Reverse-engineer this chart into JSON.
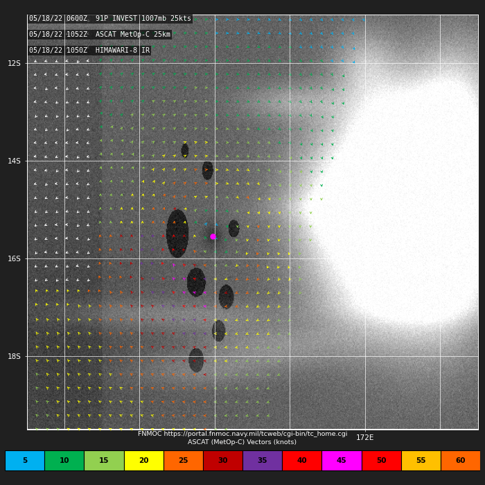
{
  "title_lines": [
    "05/18/22 0600Z  91P INVEST 1007mb 25kts",
    "05/18/22 1052Z  ASCAT MetOp-C 25km",
    "05/18/22 1050Z  HIMAWARI-8 IR"
  ],
  "footer_line1": "FNMOC https://portal.fnmoc.navy.mil/tcweb/cgi-bin/tc_home.cgi",
  "footer_line2": "ASCAT (MetOp-C) Vectors (knots)",
  "colorbar_values": [
    5,
    10,
    15,
    20,
    25,
    30,
    35,
    40,
    45,
    50,
    55,
    60
  ],
  "colorbar_colors": [
    "#00b0f0",
    "#00b050",
    "#92d050",
    "#ffff00",
    "#ff6600",
    "#c00000",
    "#7030a0",
    "#ff0000",
    "#ff00ff",
    "#ff0000",
    "#ffc000",
    "#ff6600"
  ],
  "lat_labels": [
    "12S",
    "14S",
    "16S",
    "18S"
  ],
  "lat_ticks": [
    -12,
    -14,
    -16,
    -18
  ],
  "lon_label": "172E",
  "lon_tick": 172,
  "map_xlim": [
    163.0,
    175.0
  ],
  "map_ylim": [
    -19.5,
    -11.0
  ],
  "eye_lat": -15.55,
  "eye_lon": 167.95,
  "eye_color": "#ff00ff",
  "grid_lats": [
    -12,
    -14,
    -16,
    -18
  ],
  "grid_lons": [
    164,
    166,
    168,
    170,
    172,
    174
  ]
}
